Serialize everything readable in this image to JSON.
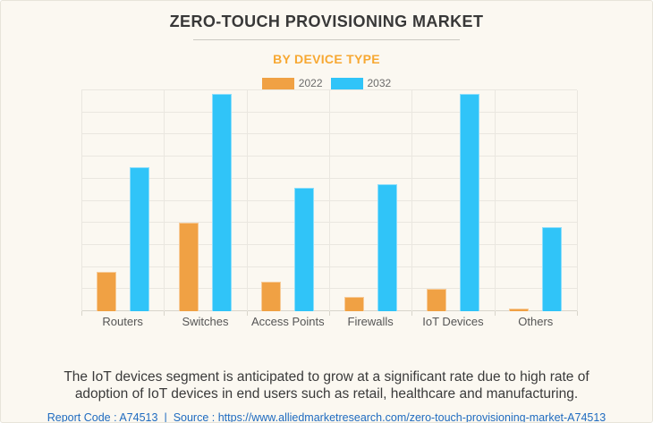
{
  "page": {
    "title": "ZERO-TOUCH PROVISIONING MARKET",
    "subtitle": "BY DEVICE TYPE",
    "summary": "The IoT devices segment is anticipated to grow at a significant rate due to high rate of adoption of IoT devices in end users such as retail, healthcare and manufacturing.",
    "report_code": "Report Code : A74513",
    "separator": "|",
    "source_label": "Source :",
    "source_url": "https://www.alliedmarketresearch.com/zero-touch-provisioning-market-A74513"
  },
  "colors": {
    "background": "#fbf8f1",
    "bar_orange": "#f0a144",
    "bar_blue": "#30c4f8",
    "subtitle_orange": "#f7a832",
    "link_blue": "#1f6bc0",
    "gridline": "#eae7e0",
    "axis_text": "#555555",
    "title_text": "#383838"
  },
  "chart_data": {
    "type": "bar",
    "title": "ZERO-TOUCH PROVISIONING MARKET",
    "subtitle": "BY DEVICE TYPE",
    "categories": [
      "Routers",
      "Switches",
      "Access Points",
      "Firewalls",
      "IoT Devices",
      "Others"
    ],
    "series": [
      {
        "name": "2022",
        "color": "#f0a144",
        "values": [
          18,
          40,
          13.5,
          6.5,
          10,
          1.2
        ]
      },
      {
        "name": "2032",
        "color": "#30c4f8",
        "values": [
          65,
          98.5,
          56,
          57.5,
          98.5,
          38
        ]
      }
    ],
    "ylim": [
      0,
      100
    ],
    "y_divisions": 10,
    "grid": "horizontal and vertical category boundaries, no y tick labels",
    "legend_position": "top center",
    "value_note": "relative bar heights, percent of plot height; no numeric axis labels shown"
  }
}
